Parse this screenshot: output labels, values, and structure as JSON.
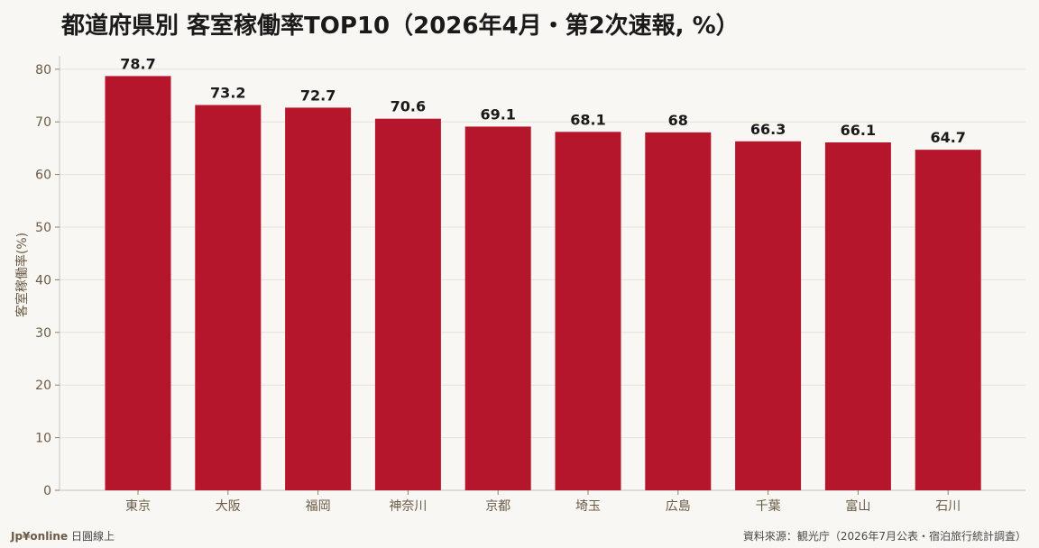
{
  "chart_data": {
    "type": "bar",
    "title": "都道府県別 客室稼働率TOP10（2026年4月・第2次速報, %）",
    "ylabel": "客室稼働率(%)",
    "xlabel": "",
    "categories": [
      "東京",
      "大阪",
      "福岡",
      "神奈川",
      "京都",
      "埼玉",
      "広島",
      "千葉",
      "富山",
      "石川"
    ],
    "values": [
      78.7,
      73.2,
      72.7,
      70.6,
      69.1,
      68.1,
      68,
      66.3,
      66.1,
      64.7
    ],
    "value_labels": [
      "78.7",
      "73.2",
      "72.7",
      "70.6",
      "69.1",
      "68.1",
      "68",
      "66.3",
      "66.1",
      "64.7"
    ],
    "ylim": [
      0,
      80
    ],
    "yticks": [
      "0",
      "10",
      "20",
      "30",
      "40",
      "50",
      "60",
      "70",
      "80"
    ],
    "grid": true,
    "bar_color": "#b5162c"
  },
  "footer": {
    "brand_logo": "Jp¥online",
    "brand_name": "日圓線上",
    "source": "資料來源：観光庁（2026年7月公表・宿泊旅行統計調査）"
  }
}
